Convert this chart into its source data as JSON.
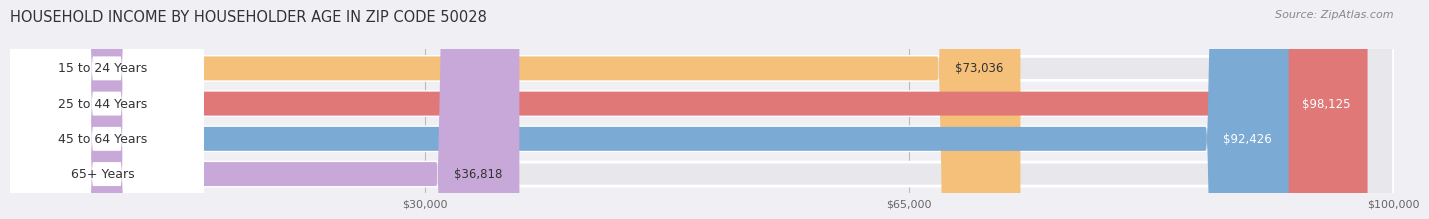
{
  "title": "HOUSEHOLD INCOME BY HOUSEHOLDER AGE IN ZIP CODE 50028",
  "source": "Source: ZipAtlas.com",
  "categories": [
    "15 to 24 Years",
    "25 to 44 Years",
    "45 to 64 Years",
    "65+ Years"
  ],
  "values": [
    73036,
    98125,
    92426,
    36818
  ],
  "bar_colors": [
    "#F5C07A",
    "#E07878",
    "#7BAAD4",
    "#C8A8D8"
  ],
  "bar_bg_color": "#E8E8EC",
  "value_labels": [
    "$73,036",
    "$98,125",
    "$92,426",
    "$36,818"
  ],
  "value_label_colors": [
    "#333333",
    "#ffffff",
    "#ffffff",
    "#333333"
  ],
  "x_ticks": [
    30000,
    65000,
    100000
  ],
  "x_tick_labels": [
    "$30,000",
    "$65,000",
    "$100,000"
  ],
  "xmax": 100000,
  "title_fontsize": 10.5,
  "source_fontsize": 8,
  "label_fontsize": 9,
  "value_fontsize": 8.5,
  "background_color": "#F0F0F4"
}
